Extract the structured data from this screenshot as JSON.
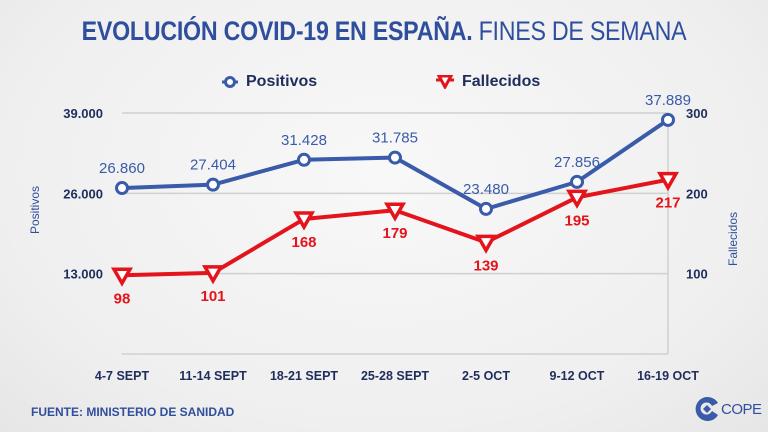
{
  "title": {
    "bold": "EVOLUCIÓN COVID-19 EN ESPAÑA.",
    "light": "FINES DE SEMANA"
  },
  "source": "FUENTE: MINISTERIO DE SANIDAD",
  "logo": {
    "text": "COPE",
    "icon": "cope-logo-icon"
  },
  "colors": {
    "positivos": "#3a5ba9",
    "fallecidos": "#e3141b",
    "axis_text": "#1f2d5c",
    "grid": "#d0d0d0"
  },
  "chart_data": {
    "type": "line",
    "title": "EVOLUCIÓN COVID-19 EN ESPAÑA. FINES DE SEMANA",
    "categories": [
      "4-7 SEPT",
      "11-14 SEPT",
      "18-21 SEPT",
      "25-28 SEPT",
      "2-5 OCT",
      "9-12 OCT",
      "16-19 OCT"
    ],
    "series": [
      {
        "name": "Positivos",
        "axis": "left",
        "marker": "circle",
        "values": [
          26860,
          27404,
          31428,
          31785,
          23480,
          27856,
          37889
        ],
        "labels": [
          "26.860",
          "27.404",
          "31.428",
          "31.785",
          "23.480",
          "27.856",
          "37.889"
        ]
      },
      {
        "name": "Fallecidos",
        "axis": "right",
        "marker": "triangle-down",
        "values": [
          98,
          101,
          168,
          179,
          139,
          195,
          217
        ],
        "labels": [
          "98",
          "101",
          "168",
          "179",
          "139",
          "195",
          "217"
        ]
      }
    ],
    "ylabel": "Positivos",
    "ylabel_right": "Fallecidos",
    "ylim": [
      0,
      39000
    ],
    "ylim_right": [
      0,
      300
    ],
    "yticks": [
      13000,
      26000,
      39000
    ],
    "ytick_labels": [
      "13.000",
      "26.000",
      "39.000"
    ],
    "yticks_right": [
      100,
      200,
      300
    ],
    "ytick_labels_right": [
      "100",
      "200",
      "300"
    ],
    "grid": true,
    "legend": {
      "position": "top-center",
      "entries": [
        "Positivos",
        "Fallecidos"
      ]
    }
  }
}
